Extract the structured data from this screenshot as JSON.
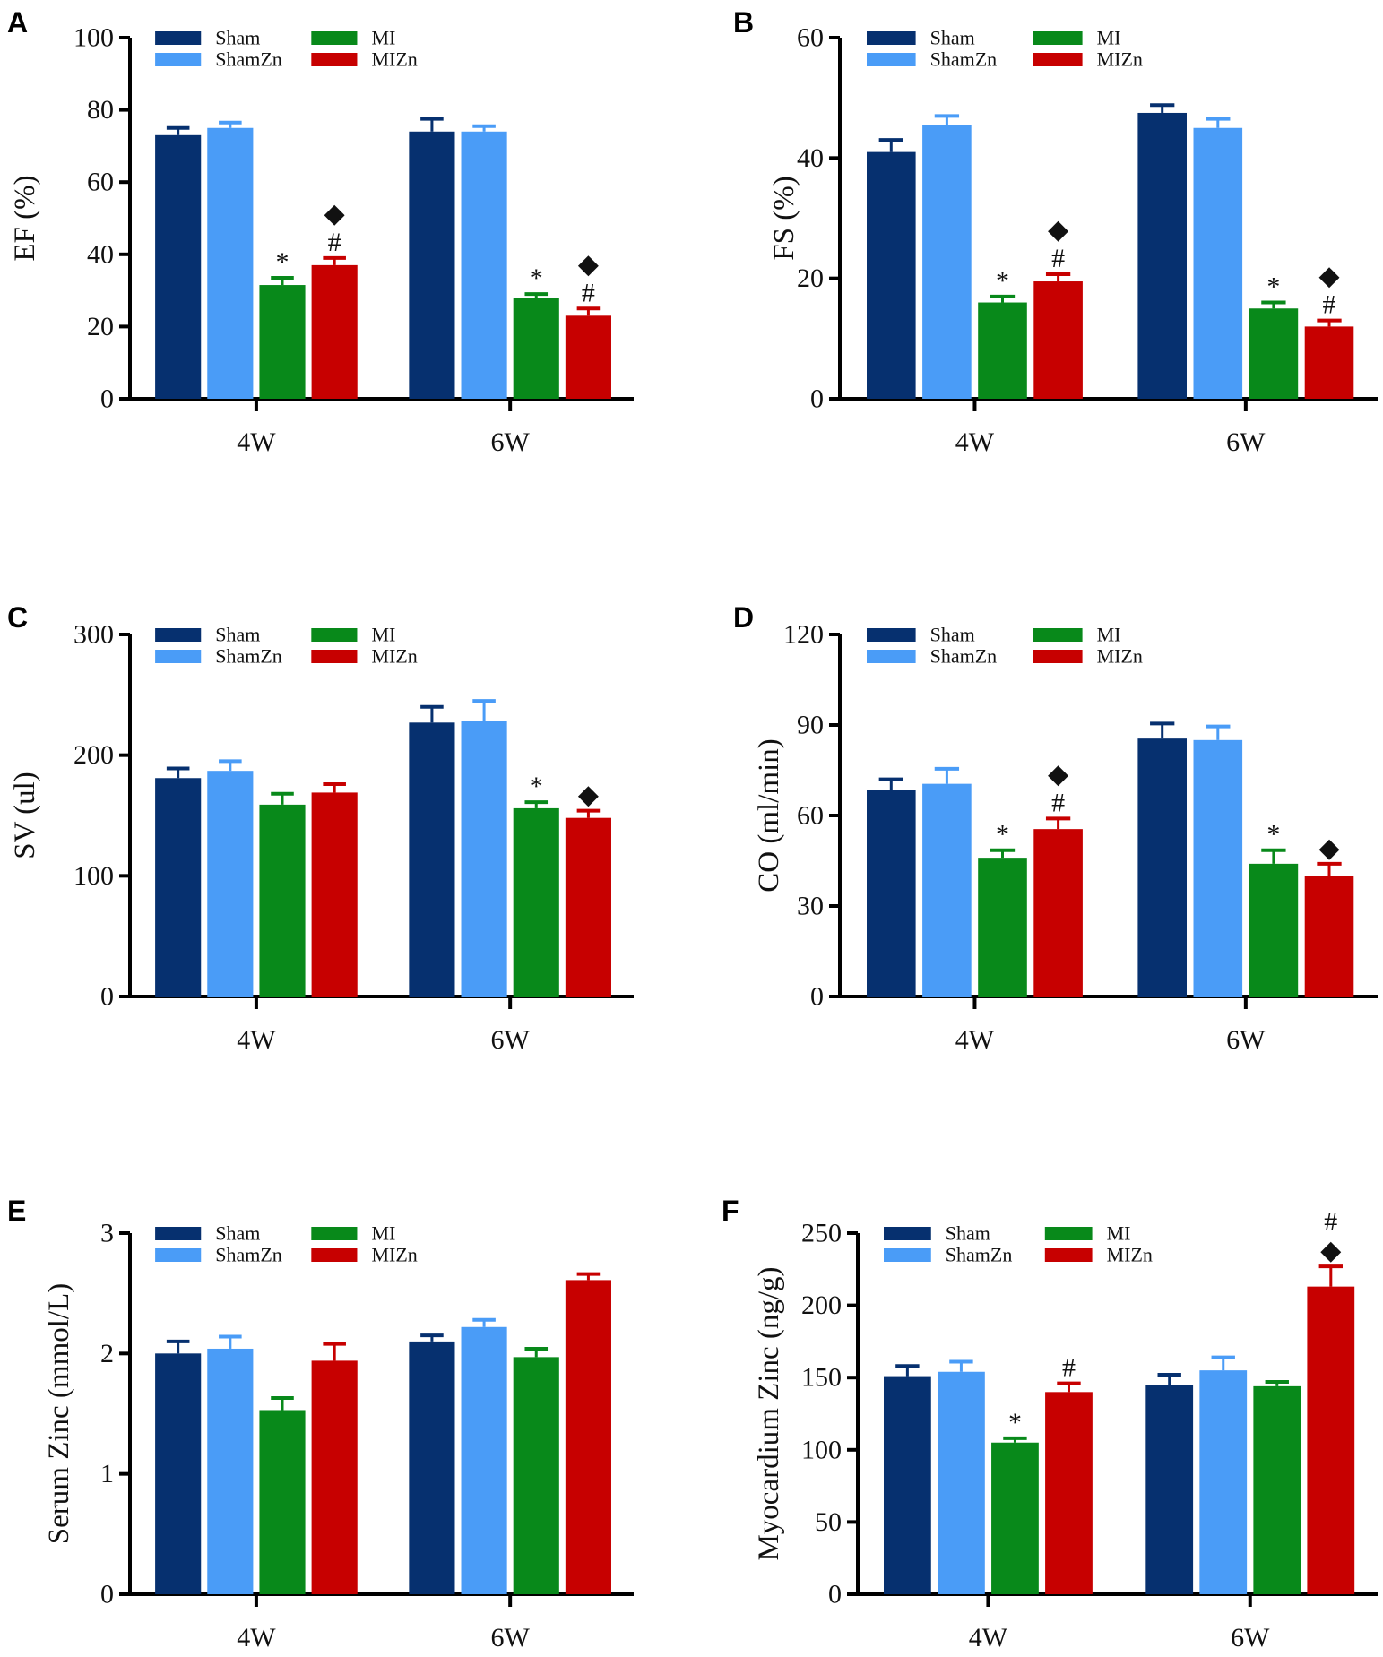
{
  "series_names": [
    "Sham",
    "ShamZn",
    "MI",
    "MIZn"
  ],
  "series_colors": [
    "#06306f",
    "#4a9cf7",
    "#08891a",
    "#c70000"
  ],
  "categories": [
    "4W",
    "6W"
  ],
  "chart_data": [
    {
      "type": "bar",
      "panel": "A",
      "ylabel": "EF (%)",
      "ylim": [
        0,
        100
      ],
      "yticks": [
        "0",
        "20",
        "40",
        "60",
        "80",
        "100"
      ],
      "legend": "top-left",
      "values": [
        [
          73,
          75,
          31.5,
          37
        ],
        [
          74,
          74,
          28,
          23
        ]
      ],
      "errors": [
        [
          2,
          1.5,
          2,
          2
        ],
        [
          3.5,
          1.5,
          1,
          2
        ]
      ],
      "annotations": [
        [
          [],
          [],
          [
            "*"
          ],
          [
            "◆",
            "#"
          ]
        ],
        [
          [],
          [],
          [
            "*"
          ],
          [
            "◆",
            "#"
          ]
        ]
      ]
    },
    {
      "type": "bar",
      "panel": "B",
      "ylabel": "FS (%)",
      "ylim": [
        0,
        60
      ],
      "yticks": [
        "0",
        "20",
        "40",
        "60"
      ],
      "legend": "top-left",
      "values": [
        [
          41,
          45.5,
          16,
          19.5
        ],
        [
          47.5,
          45,
          15,
          12
        ]
      ],
      "errors": [
        [
          2,
          1.5,
          1,
          1.2
        ],
        [
          1.3,
          1.5,
          1,
          1
        ]
      ],
      "annotations": [
        [
          [],
          [],
          [
            "*"
          ],
          [
            "◆",
            "#"
          ]
        ],
        [
          [],
          [],
          [
            "*"
          ],
          [
            "◆",
            "#"
          ]
        ]
      ]
    },
    {
      "type": "bar",
      "panel": "C",
      "ylabel": "SV (ul)",
      "ylim": [
        0,
        300
      ],
      "yticks": [
        "0",
        "100",
        "200",
        "300"
      ],
      "legend": "top-left",
      "values": [
        [
          181,
          187,
          159,
          169
        ],
        [
          227,
          228,
          156,
          148
        ]
      ],
      "errors": [
        [
          8,
          8,
          9,
          7
        ],
        [
          13,
          17,
          5,
          6
        ]
      ],
      "annotations": [
        [
          [],
          [],
          [],
          []
        ],
        [
          [],
          [],
          [
            "*"
          ],
          [
            "◆"
          ]
        ]
      ]
    },
    {
      "type": "bar",
      "panel": "D",
      "ylabel": "CO (ml/min)",
      "ylim": [
        0,
        120
      ],
      "yticks": [
        "0",
        "30",
        "60",
        "90",
        "120"
      ],
      "legend": "top-left",
      "values": [
        [
          68.5,
          70.5,
          46,
          55.5
        ],
        [
          85.5,
          85,
          44,
          40
        ]
      ],
      "errors": [
        [
          3.5,
          5,
          2.5,
          3.5
        ],
        [
          5,
          4.5,
          4.5,
          4
        ]
      ],
      "annotations": [
        [
          [],
          [],
          [
            "*"
          ],
          [
            "◆",
            "#"
          ]
        ],
        [
          [],
          [],
          [
            "*"
          ],
          [
            "◆"
          ]
        ]
      ]
    },
    {
      "type": "bar",
      "panel": "E",
      "ylabel": "Serum Zinc (mmol/L)",
      "ylim": [
        0,
        3
      ],
      "yticks": [
        "0",
        "1",
        "2",
        "3"
      ],
      "legend": "top-left",
      "values": [
        [
          2.0,
          2.04,
          1.53,
          1.94
        ],
        [
          2.1,
          2.22,
          1.97,
          2.61
        ]
      ],
      "errors": [
        [
          0.1,
          0.1,
          0.1,
          0.14
        ],
        [
          0.05,
          0.06,
          0.07,
          0.05
        ]
      ],
      "annotations": [
        [
          [],
          [],
          [],
          []
        ],
        [
          [],
          [],
          [],
          []
        ]
      ]
    },
    {
      "type": "bar",
      "panel": "F",
      "ylabel": "Myocardium Zinc (ng/g)",
      "ylim": [
        0,
        250
      ],
      "yticks": [
        "0",
        "50",
        "100",
        "150",
        "200",
        "250"
      ],
      "legend": "top-left",
      "values": [
        [
          151,
          154,
          105,
          140
        ],
        [
          145,
          155,
          144,
          213
        ]
      ],
      "errors": [
        [
          7,
          7,
          3,
          6
        ],
        [
          7,
          9,
          3,
          14
        ]
      ],
      "annotations": [
        [
          [],
          [],
          [
            "*"
          ],
          [
            "#"
          ]
        ],
        [
          [],
          [],
          [],
          [
            "#",
            "◆"
          ]
        ]
      ]
    }
  ]
}
